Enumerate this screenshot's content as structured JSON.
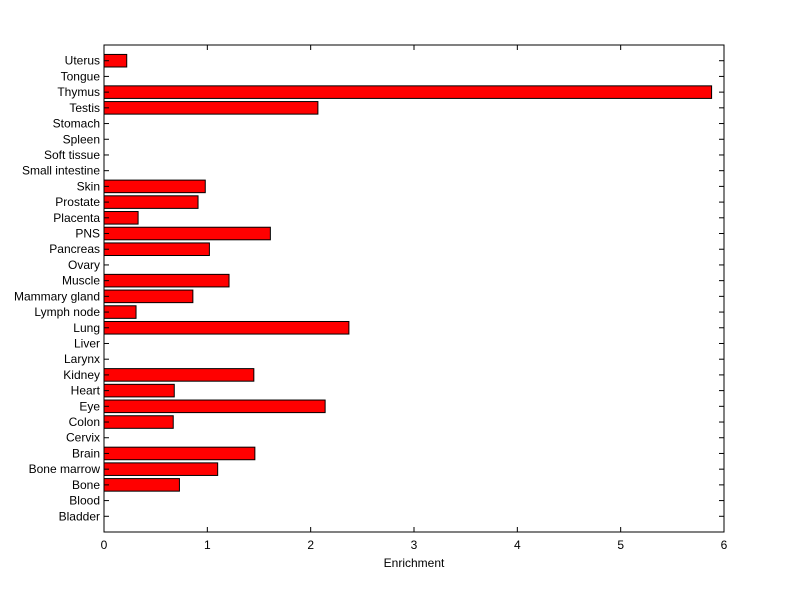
{
  "chart_data": {
    "type": "bar",
    "orientation": "horizontal",
    "categories": [
      "Bladder",
      "Blood",
      "Bone",
      "Bone marrow",
      "Brain",
      "Cervix",
      "Colon",
      "Eye",
      "Heart",
      "Kidney",
      "Larynx",
      "Liver",
      "Lung",
      "Lymph node",
      "Mammary gland",
      "Muscle",
      "Ovary",
      "Pancreas",
      "PNS",
      "Placenta",
      "Prostate",
      "Skin",
      "Small intestine",
      "Soft tissue",
      "Spleen",
      "Stomach",
      "Testis",
      "Thymus",
      "Tongue",
      "Uterus"
    ],
    "values": [
      0,
      0,
      0.73,
      1.1,
      1.46,
      0,
      0.67,
      2.14,
      0.68,
      1.45,
      0,
      0,
      2.37,
      0.31,
      0.86,
      1.21,
      0,
      1.02,
      1.61,
      0.33,
      0.91,
      0.98,
      0,
      0,
      0,
      0,
      2.07,
      5.88,
      0,
      0.22
    ],
    "xlabel": "Enrichment",
    "ylabel": "",
    "title": "",
    "xlim": [
      0,
      6
    ],
    "xticks": [
      "0",
      "1",
      "2",
      "3",
      "4",
      "5",
      "6"
    ],
    "grid": false,
    "legend": "none",
    "bar_color": "#ff0000",
    "bar_edge_color": "#000000"
  }
}
